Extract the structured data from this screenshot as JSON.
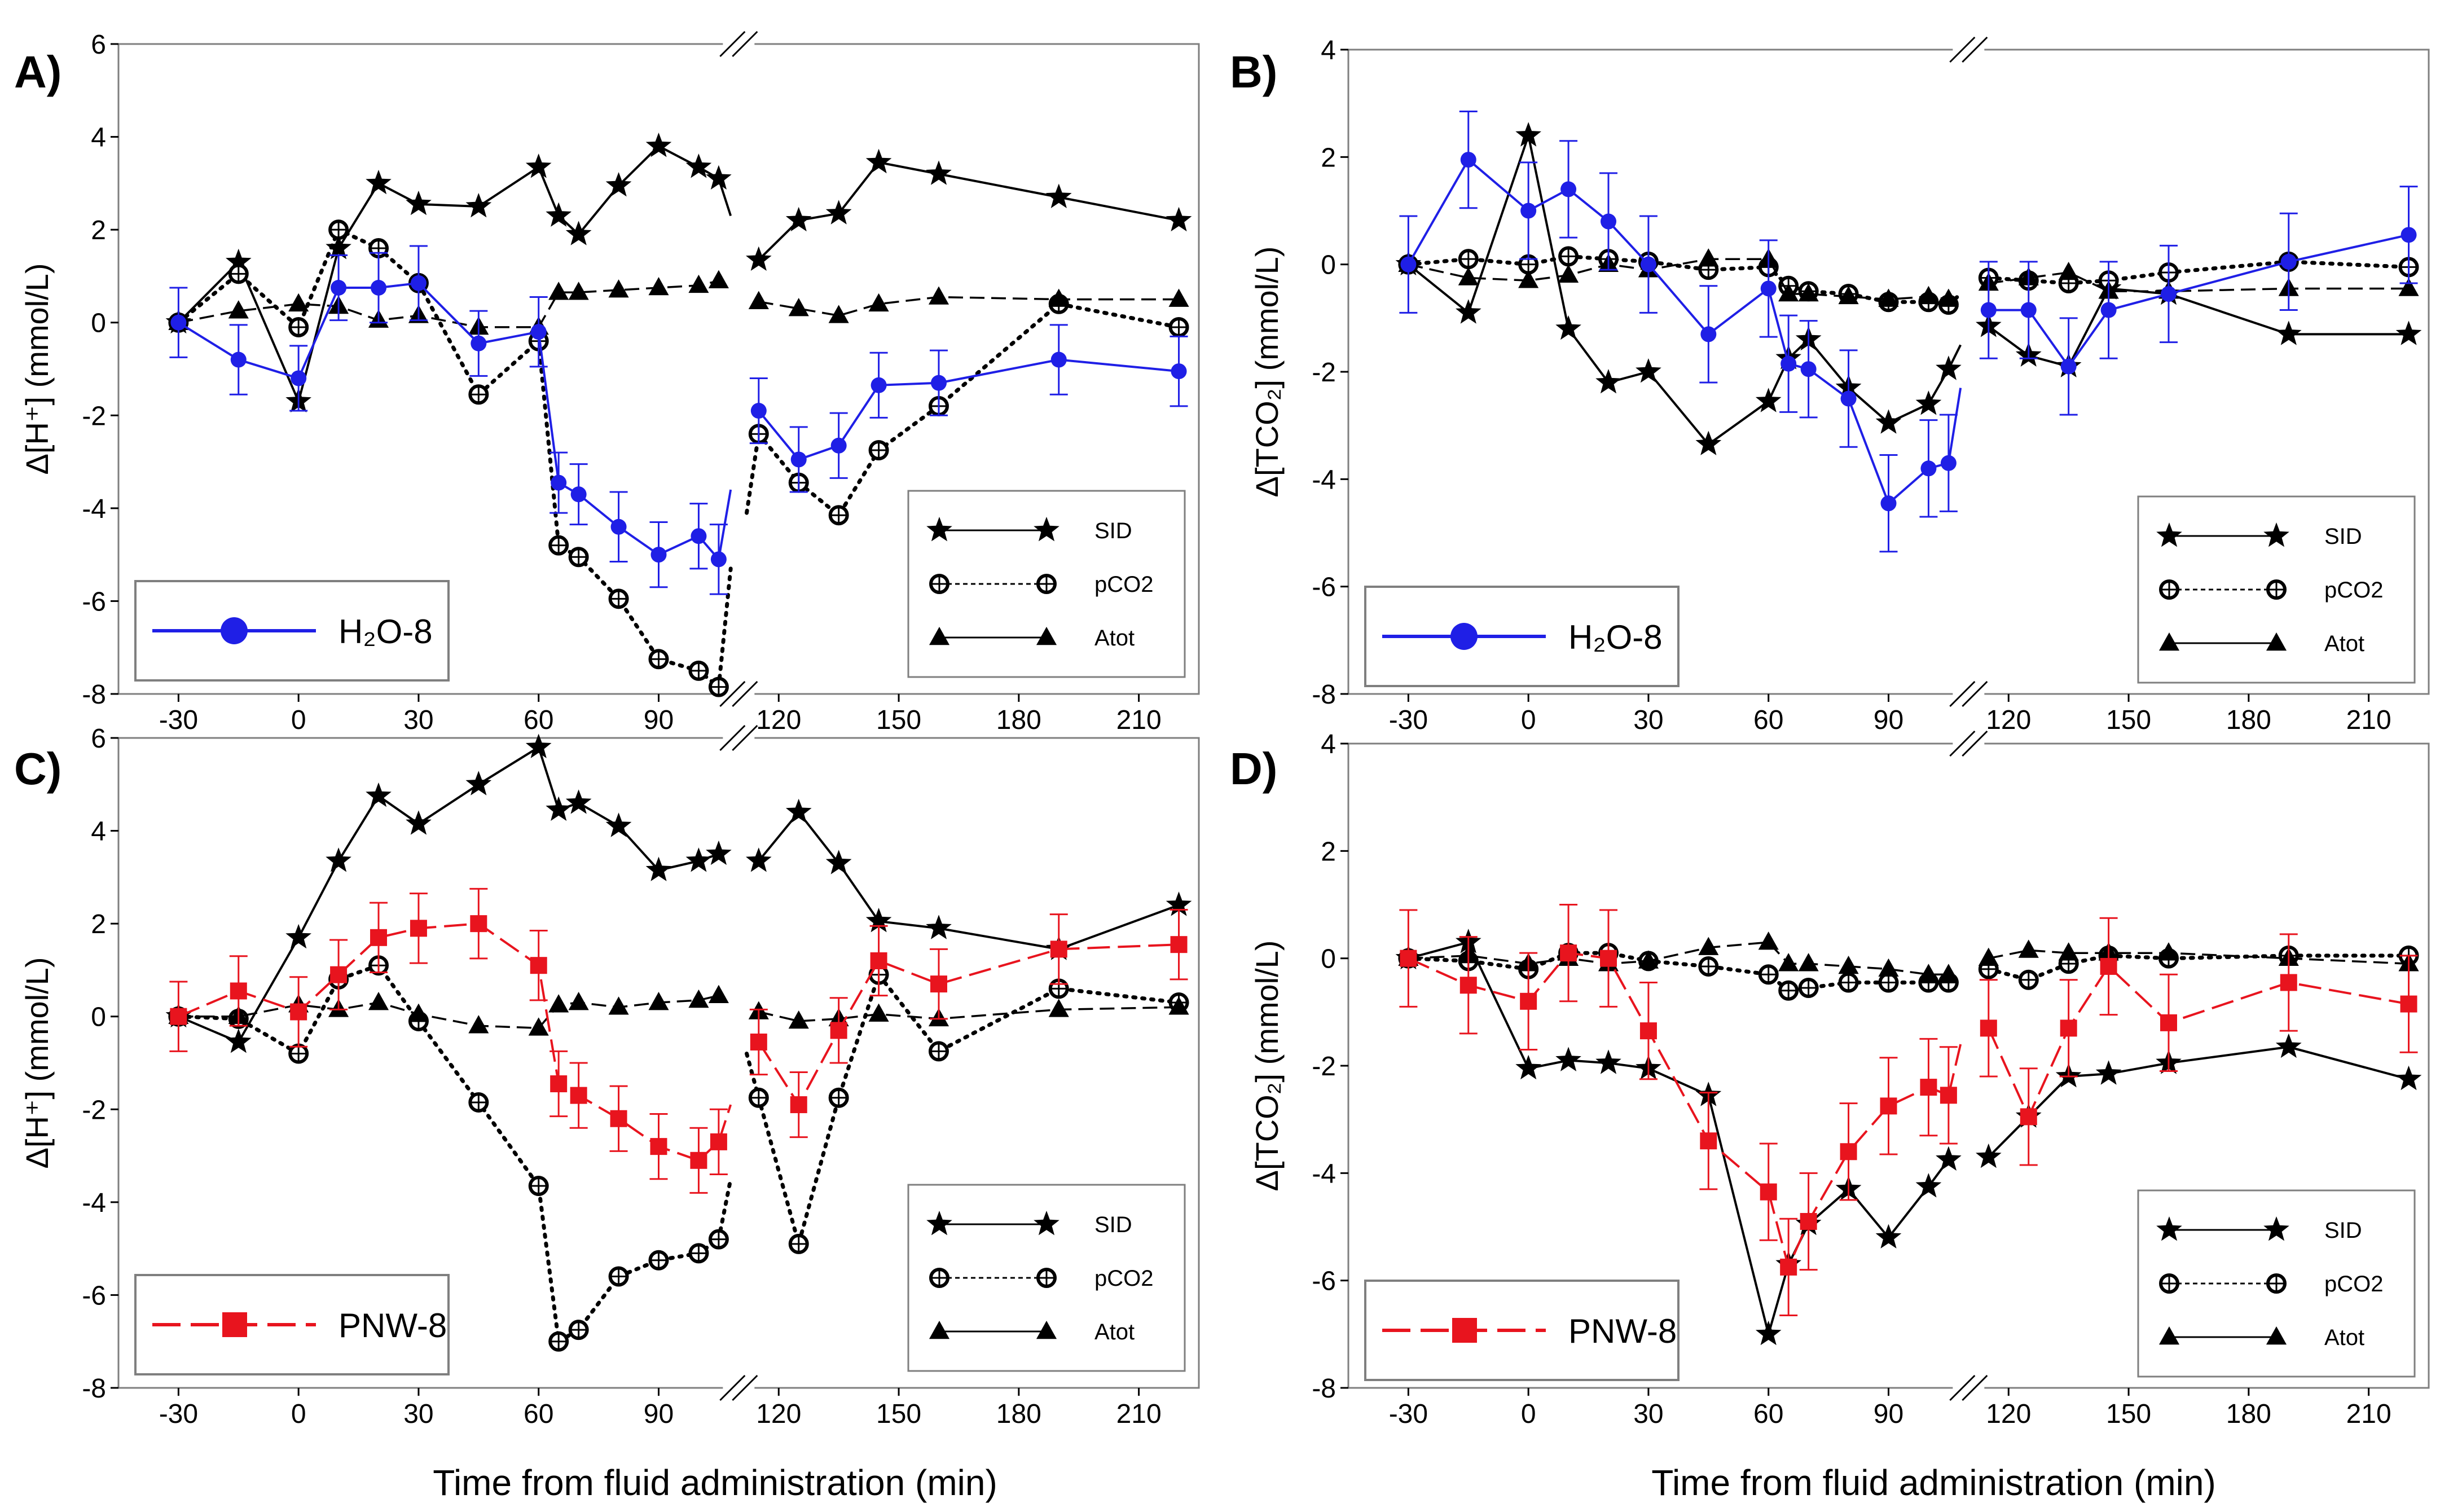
{
  "figure": {
    "xlabel": "Time from fluid administration (min)",
    "x_ticks": [
      -30,
      0,
      30,
      60,
      90,
      120,
      150,
      180,
      210
    ],
    "series_legend": [
      {
        "key": "sid",
        "label": "SID"
      },
      {
        "key": "pco2",
        "label": "pCO2"
      },
      {
        "key": "atot",
        "label": "Atot"
      }
    ],
    "colors": {
      "h2o": "#1f1fe6",
      "pnw": "#e8141e",
      "black": "#000000"
    }
  },
  "chart_data": [
    {
      "panel": "A)",
      "type": "line",
      "ylabel": "Δ[H⁺] (mmol/L)",
      "ylim": [
        -8,
        6
      ],
      "y_ticks": [
        -8,
        -6,
        -4,
        -2,
        0,
        2,
        4,
        6
      ],
      "xlim": [
        -45,
        225
      ],
      "axis_break_x": 110,
      "treatment": {
        "label": "H2O-8",
        "display": "H₂O-8",
        "color": "#1f1fe6",
        "marker": "circle"
      },
      "series": [
        {
          "key": "sid",
          "name": "SID",
          "x": [
            -30,
            -15,
            0,
            10,
            20,
            30,
            45,
            60,
            65,
            70,
            80,
            90,
            100,
            105,
            115,
            125,
            135,
            145,
            160,
            190,
            220
          ],
          "values": [
            0,
            1.3,
            -1.7,
            1.6,
            3.0,
            2.55,
            2.5,
            3.35,
            2.3,
            1.9,
            2.95,
            3.8,
            3.35,
            3.1,
            1.35,
            2.2,
            2.35,
            3.45,
            3.2,
            2.7,
            2.2
          ],
          "dangling": [
            {
              "from": 105,
              "to": 108,
              "y": 2.3
            }
          ]
        },
        {
          "key": "pco2",
          "name": "pCO2",
          "x": [
            -30,
            -15,
            0,
            10,
            20,
            30,
            45,
            60,
            65,
            70,
            80,
            90,
            100,
            105,
            115,
            125,
            135,
            145,
            160,
            190,
            220
          ],
          "values": [
            0,
            1.05,
            -0.1,
            2.0,
            1.6,
            0.85,
            -1.55,
            -0.4,
            -4.8,
            -5.05,
            -5.95,
            -7.25,
            -7.5,
            -7.85,
            -2.4,
            -3.45,
            -4.15,
            -2.75,
            -1.8,
            0.4,
            -0.1
          ],
          "dangling": [
            {
              "from": 105,
              "to": 108,
              "y": -5.3
            },
            {
              "from": 112,
              "to": 115,
              "y": -4.1
            }
          ]
        },
        {
          "key": "atot",
          "name": "Atot",
          "x": [
            -30,
            -15,
            0,
            10,
            20,
            30,
            45,
            60,
            65,
            70,
            80,
            90,
            100,
            105,
            115,
            125,
            135,
            145,
            160,
            190,
            220
          ],
          "values": [
            0,
            0.25,
            0.4,
            0.35,
            0.05,
            0.15,
            -0.1,
            -0.1,
            0.65,
            0.65,
            0.7,
            0.75,
            0.8,
            0.9,
            0.45,
            0.3,
            0.15,
            0.4,
            0.55,
            0.5,
            0.5
          ]
        },
        {
          "key": "treatment",
          "name": "H2O-8",
          "x": [
            -30,
            -15,
            0,
            10,
            20,
            30,
            45,
            60,
            65,
            70,
            80,
            90,
            100,
            105,
            115,
            125,
            135,
            145,
            160,
            190,
            220
          ],
          "values": [
            0,
            -0.8,
            -1.2,
            0.75,
            0.75,
            0.85,
            -0.45,
            -0.2,
            -3.45,
            -3.7,
            -4.4,
            -5.0,
            -4.6,
            -5.1,
            -1.9,
            -2.95,
            -2.65,
            -1.35,
            -1.3,
            -0.8,
            -1.05
          ],
          "errors": [
            0.75,
            0.75,
            0.7,
            0.7,
            0.75,
            0.8,
            0.7,
            0.75,
            0.65,
            0.65,
            0.75,
            0.7,
            0.7,
            0.75,
            0.7,
            0.7,
            0.7,
            0.7,
            0.7,
            0.75,
            0.75
          ],
          "dangling": [
            {
              "from": 105,
              "to": 108,
              "y": -3.6
            }
          ]
        }
      ]
    },
    {
      "panel": "B)",
      "type": "line",
      "ylabel": "Δ[TCO₂] (mmol/L)",
      "ylim": [
        -8,
        4
      ],
      "y_ticks": [
        -8,
        -6,
        -4,
        -2,
        0,
        2,
        4
      ],
      "xlim": [
        -45,
        225
      ],
      "axis_break_x": 110,
      "treatment": {
        "label": "H2O-8",
        "display": "H₂O-8",
        "color": "#1f1fe6",
        "marker": "circle"
      },
      "series": [
        {
          "key": "sid",
          "name": "SID",
          "x": [
            -30,
            -15,
            0,
            10,
            20,
            30,
            45,
            60,
            65,
            70,
            80,
            90,
            100,
            105,
            115,
            125,
            135,
            145,
            160,
            190,
            220
          ],
          "values": [
            0,
            -0.9,
            2.4,
            -1.2,
            -2.2,
            -2.0,
            -3.35,
            -2.55,
            -1.75,
            -1.4,
            -2.3,
            -2.95,
            -2.6,
            -1.95,
            -1.15,
            -1.7,
            -1.9,
            -0.45,
            -0.55,
            -1.3,
            -1.3
          ],
          "dangling": [
            {
              "from": 105,
              "to": 108,
              "y": -1.5
            }
          ]
        },
        {
          "key": "pco2",
          "name": "pCO2",
          "x": [
            -30,
            -15,
            0,
            10,
            20,
            30,
            45,
            60,
            65,
            70,
            80,
            90,
            100,
            105,
            115,
            125,
            135,
            145,
            160,
            190,
            220
          ],
          "values": [
            0,
            0.1,
            0,
            0.15,
            0.1,
            0.05,
            -0.1,
            -0.05,
            -0.4,
            -0.5,
            -0.55,
            -0.7,
            -0.7,
            -0.75,
            -0.25,
            -0.3,
            -0.35,
            -0.3,
            -0.15,
            0.05,
            -0.05
          ],
          "dangling": [
            {
              "from": 105,
              "to": 108,
              "y": -0.55
            }
          ]
        },
        {
          "key": "atot",
          "name": "Atot",
          "x": [
            -30,
            -15,
            0,
            10,
            20,
            30,
            45,
            60,
            65,
            70,
            80,
            90,
            100,
            105,
            115,
            125,
            135,
            145,
            160,
            190,
            220
          ],
          "values": [
            0,
            -0.25,
            -0.3,
            -0.2,
            0.0,
            -0.1,
            0.1,
            0.1,
            -0.55,
            -0.55,
            -0.6,
            -0.65,
            -0.6,
            -0.65,
            -0.35,
            -0.25,
            -0.15,
            -0.5,
            -0.5,
            -0.45,
            -0.45
          ]
        },
        {
          "key": "treatment",
          "name": "H2O-8",
          "x": [
            -30,
            -15,
            0,
            10,
            20,
            30,
            45,
            60,
            65,
            70,
            80,
            90,
            100,
            105,
            115,
            125,
            135,
            145,
            160,
            190,
            220
          ],
          "values": [
            0,
            1.95,
            1.0,
            1.4,
            0.8,
            0,
            -1.3,
            -0.45,
            -1.85,
            -1.95,
            -2.5,
            -4.45,
            -3.8,
            -3.7,
            -0.85,
            -0.85,
            -1.9,
            -0.85,
            -0.55,
            0.05,
            0.55
          ],
          "errors": [
            0.9,
            0.9,
            0.9,
            0.9,
            0.9,
            0.9,
            0.9,
            0.9,
            0.9,
            0.9,
            0.9,
            0.9,
            0.9,
            0.9,
            0.9,
            0.9,
            0.9,
            0.9,
            0.9,
            0.9,
            0.9
          ],
          "dangling": [
            {
              "from": 105,
              "to": 108,
              "y": -2.3
            }
          ]
        }
      ]
    },
    {
      "panel": "C)",
      "type": "line",
      "ylabel": "Δ[H⁺] (mmol/L)",
      "ylim": [
        -8,
        6
      ],
      "y_ticks": [
        -8,
        -6,
        -4,
        -2,
        0,
        2,
        4,
        6
      ],
      "xlim": [
        -45,
        225
      ],
      "axis_break_x": 110,
      "treatment": {
        "label": "PNW-8",
        "display": "PNW-8",
        "color": "#e8141e",
        "marker": "square"
      },
      "series": [
        {
          "key": "sid",
          "name": "SID",
          "x": [
            -30,
            -15,
            0,
            10,
            20,
            30,
            45,
            60,
            65,
            70,
            80,
            90,
            100,
            105,
            115,
            125,
            135,
            145,
            160,
            190,
            220
          ],
          "values": [
            0,
            -0.55,
            1.7,
            3.35,
            4.75,
            4.15,
            5.0,
            5.8,
            4.45,
            4.6,
            4.1,
            3.15,
            3.35,
            3.5,
            3.35,
            4.4,
            3.3,
            2.05,
            1.9,
            1.45,
            2.4
          ]
        },
        {
          "key": "pco2",
          "name": "pCO2",
          "x": [
            -30,
            -15,
            0,
            10,
            20,
            30,
            45,
            60,
            65,
            70,
            80,
            90,
            100,
            105,
            115,
            125,
            135,
            145,
            160,
            190,
            220
          ],
          "values": [
            0,
            -0.05,
            -0.8,
            0.8,
            1.1,
            -0.1,
            -1.85,
            -3.65,
            -7.0,
            -6.75,
            -5.6,
            -5.25,
            -5.1,
            -4.8,
            -1.75,
            -4.9,
            -1.75,
            0.9,
            -0.75,
            0.6,
            0.3
          ],
          "dangling": [
            {
              "from": 105,
              "to": 108,
              "y": -3.5
            },
            {
              "from": 112,
              "to": 115,
              "y": -0.8
            }
          ]
        },
        {
          "key": "atot",
          "name": "Atot",
          "x": [
            -30,
            -15,
            0,
            10,
            20,
            30,
            45,
            60,
            65,
            70,
            80,
            90,
            100,
            105,
            115,
            125,
            135,
            145,
            160,
            190,
            220
          ],
          "values": [
            0,
            0,
            0.25,
            0.15,
            0.3,
            0.05,
            -0.2,
            -0.25,
            0.25,
            0.3,
            0.2,
            0.3,
            0.35,
            0.45,
            0.1,
            -0.1,
            -0.05,
            0.05,
            -0.05,
            0.15,
            0.2
          ]
        },
        {
          "key": "treatment",
          "name": "PNW-8",
          "x": [
            -30,
            -15,
            0,
            10,
            20,
            30,
            45,
            60,
            65,
            70,
            80,
            90,
            100,
            105,
            115,
            125,
            135,
            145,
            160,
            190,
            220
          ],
          "values": [
            0,
            0.55,
            0.1,
            0.9,
            1.7,
            1.9,
            2.0,
            1.1,
            -1.45,
            -1.7,
            -2.2,
            -2.8,
            -3.1,
            -2.7,
            -0.55,
            -1.9,
            -0.3,
            1.2,
            0.7,
            1.45,
            1.55
          ],
          "errors": [
            0.75,
            0.75,
            0.75,
            0.75,
            0.75,
            0.75,
            0.75,
            0.75,
            0.7,
            0.7,
            0.7,
            0.7,
            0.7,
            0.7,
            0.7,
            0.7,
            0.7,
            0.75,
            0.75,
            0.75,
            0.75
          ],
          "dangling": [
            {
              "from": 105,
              "to": 108,
              "y": -1.9
            }
          ]
        }
      ]
    },
    {
      "panel": "D)",
      "type": "line",
      "ylabel": "Δ[TCO₂] (mmol/L)",
      "ylim": [
        -8,
        4
      ],
      "y_ticks": [
        -8,
        -6,
        -4,
        -2,
        0,
        2,
        4
      ],
      "xlim": [
        -45,
        225
      ],
      "axis_break_x": 110,
      "treatment": {
        "label": "PNW-8",
        "display": "PNW-8",
        "color": "#e8141e",
        "marker": "square"
      },
      "series": [
        {
          "key": "sid",
          "name": "SID",
          "x": [
            -30,
            -15,
            0,
            10,
            20,
            30,
            45,
            60,
            65,
            70,
            80,
            90,
            100,
            105,
            115,
            125,
            135,
            145,
            160,
            190,
            220
          ],
          "values": [
            0,
            0.3,
            -2.05,
            -1.9,
            -1.95,
            -2.05,
            -2.55,
            -7.0,
            -5.7,
            -4.95,
            -4.3,
            -5.2,
            -4.25,
            -3.75,
            -3.7,
            -2.95,
            -2.2,
            -2.15,
            -1.95,
            -1.65,
            -2.25
          ]
        },
        {
          "key": "pco2",
          "name": "pCO2",
          "x": [
            -30,
            -15,
            0,
            10,
            20,
            30,
            45,
            60,
            65,
            70,
            80,
            90,
            100,
            105,
            115,
            125,
            135,
            145,
            160,
            190,
            220
          ],
          "values": [
            0,
            -0.05,
            -0.2,
            0.1,
            0.1,
            -0.05,
            -0.15,
            -0.3,
            -0.6,
            -0.55,
            -0.45,
            -0.45,
            -0.45,
            -0.45,
            -0.2,
            -0.4,
            -0.1,
            0.05,
            0.0,
            0.05,
            0.05
          ]
        },
        {
          "key": "atot",
          "name": "Atot",
          "x": [
            -30,
            -15,
            0,
            10,
            20,
            30,
            45,
            60,
            65,
            70,
            80,
            90,
            100,
            105,
            115,
            125,
            135,
            145,
            160,
            190,
            220
          ],
          "values": [
            0,
            0.05,
            -0.1,
            0.0,
            -0.1,
            -0.05,
            0.2,
            0.3,
            -0.1,
            -0.1,
            -0.15,
            -0.2,
            -0.3,
            -0.3,
            0.0,
            0.15,
            0.1,
            0.1,
            0.1,
            0.0,
            -0.1
          ]
        },
        {
          "key": "treatment",
          "name": "PNW-8",
          "x": [
            -30,
            -15,
            0,
            10,
            20,
            30,
            45,
            60,
            65,
            70,
            80,
            90,
            100,
            105,
            115,
            125,
            135,
            145,
            160,
            190,
            220
          ],
          "values": [
            0,
            -0.5,
            -0.8,
            0.1,
            0,
            -1.35,
            -3.4,
            -4.35,
            -5.75,
            -4.9,
            -3.6,
            -2.75,
            -2.4,
            -2.55,
            -1.3,
            -2.95,
            -1.3,
            -0.15,
            -1.2,
            -0.45,
            -0.85
          ],
          "errors": [
            0.9,
            0.9,
            0.9,
            0.9,
            0.9,
            0.9,
            0.9,
            0.9,
            0.9,
            0.9,
            0.9,
            0.9,
            0.9,
            0.9,
            0.9,
            0.9,
            0.9,
            0.9,
            0.9,
            0.9,
            0.9
          ],
          "dangling": [
            {
              "from": 105,
              "to": 108,
              "y": -1.6
            }
          ]
        }
      ]
    }
  ]
}
